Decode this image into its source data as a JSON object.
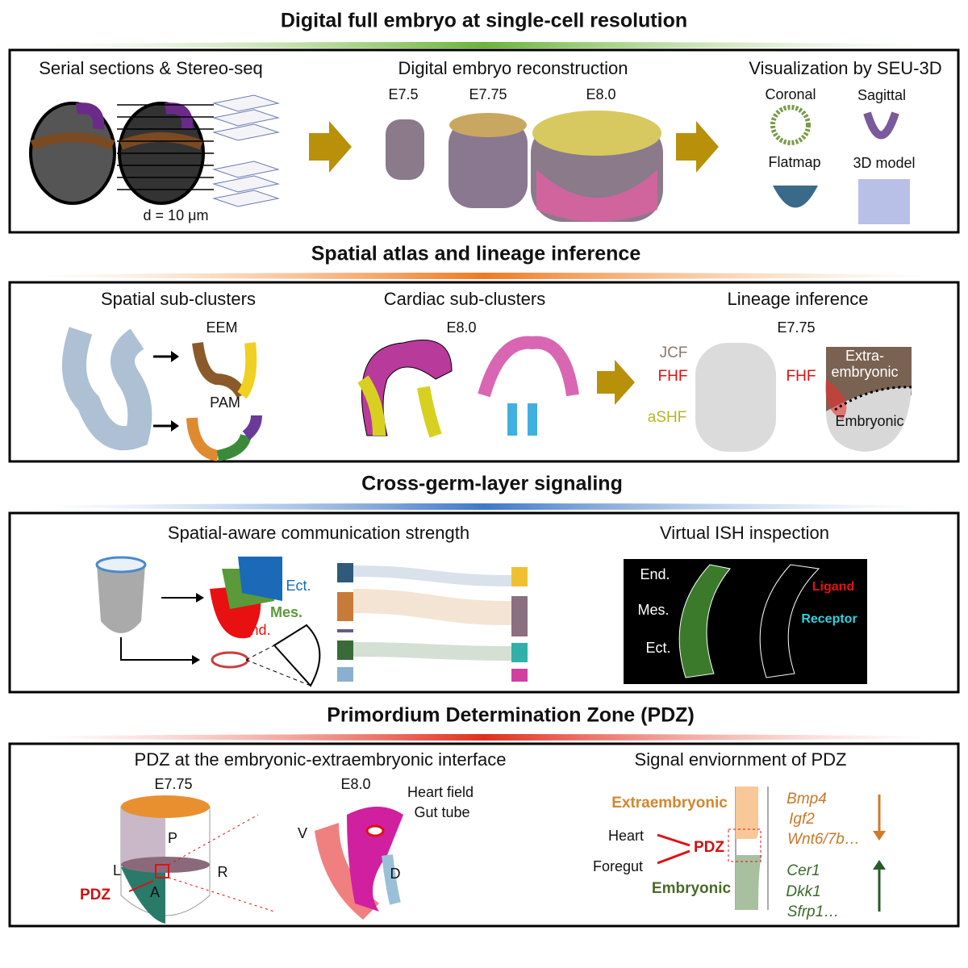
{
  "sections": [
    {
      "title": "Digital full embryo at single-cell resolution",
      "panels": [
        {
          "title": "Serial sections & Stereo-seq",
          "labels": [
            "d = 10 μm"
          ]
        },
        {
          "title": "Digital embryo reconstruction",
          "labels": [
            "E7.5",
            "E7.75",
            "E8.0"
          ]
        },
        {
          "title": "Visualization by SEU-3D",
          "labels": [
            "Coronal",
            "Sagittal",
            "Flatmap",
            "3D model"
          ]
        }
      ]
    },
    {
      "title": "Spatial atlas and lineage inference",
      "panels": [
        {
          "title": "Spatial sub-clusters",
          "labels": [
            "EEM",
            "PAM"
          ]
        },
        {
          "title": "Cardiac sub-clusters",
          "labels": [
            "E8.0"
          ]
        },
        {
          "title": "Lineage inference",
          "labels": [
            "E7.75",
            "JCF",
            "FHF",
            "aSHF",
            "FHF",
            "Extra-",
            "embryonic",
            "Embryonic"
          ]
        }
      ]
    },
    {
      "title": "Cross-germ-layer signaling",
      "panels": [
        {
          "title": "Spatial-aware communication strength",
          "labels": [
            "Ect.",
            "Mes.",
            "End."
          ]
        },
        {
          "title": "Virtual ISH inspection",
          "labels": [
            "End.",
            "Mes.",
            "Ect.",
            "Ligand",
            "Receptor"
          ]
        }
      ]
    },
    {
      "title": "Primordium Determination Zone (PDZ)",
      "panels": [
        {
          "title": "PDZ at the embryonic-extraembryonic interface",
          "labels": [
            "E7.75",
            "P",
            "L",
            "R",
            "A",
            "PDZ",
            "E8.0",
            "Heart field",
            "Gut tube",
            "V",
            "D"
          ]
        },
        {
          "title": "Signal enviornment of PDZ",
          "labels": [
            "Extraembryonic",
            "Heart",
            "PDZ",
            "Foregut",
            "Embryonic",
            "Bmp4",
            "Igf2",
            "Wnt6/7b…",
            "Cer1",
            "Dkk1",
            "Sfrp1…"
          ]
        }
      ]
    }
  ]
}
